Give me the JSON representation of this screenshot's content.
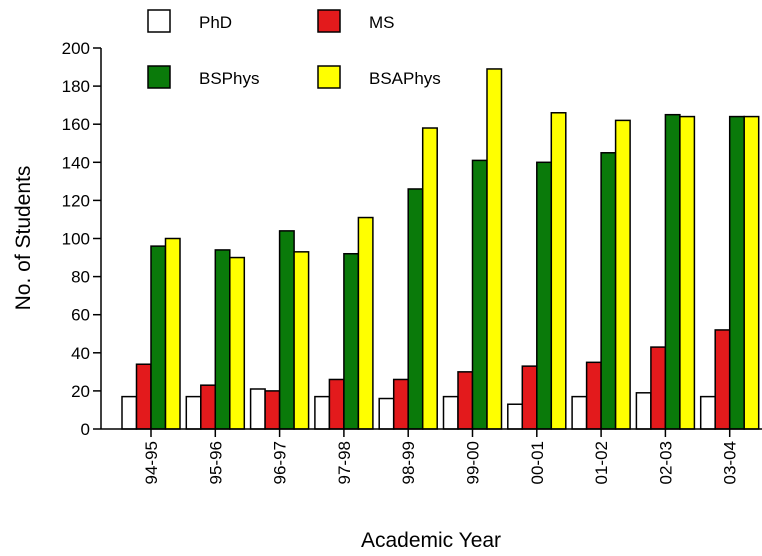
{
  "chart_data": {
    "type": "bar",
    "title": "",
    "xlabel": "Academic Year",
    "ylabel": "No. of Students",
    "ylim": [
      0,
      200
    ],
    "yticks": [
      0,
      20,
      40,
      60,
      80,
      100,
      120,
      140,
      160,
      180,
      200
    ],
    "grid": false,
    "legend_position": "top",
    "categories": [
      "94-95",
      "95-96",
      "96-97",
      "97-98",
      "98-99",
      "99-00",
      "00-01",
      "01-02",
      "02-03",
      "03-04"
    ],
    "series": [
      {
        "name": "PhD",
        "color": "#ffffff",
        "values": [
          17,
          17,
          21,
          17,
          16,
          17,
          13,
          17,
          19,
          17
        ]
      },
      {
        "name": "MS",
        "color": "#e31a1c",
        "values": [
          34,
          23,
          20,
          26,
          26,
          30,
          33,
          35,
          43,
          52
        ]
      },
      {
        "name": "BSPhys",
        "color": "#0a7a0a",
        "values": [
          96,
          94,
          104,
          92,
          126,
          141,
          140,
          145,
          165,
          164
        ]
      },
      {
        "name": "BSAPhys",
        "color": "#ffff00",
        "values": [
          100,
          90,
          93,
          111,
          158,
          189,
          166,
          162,
          164,
          164
        ]
      }
    ]
  }
}
